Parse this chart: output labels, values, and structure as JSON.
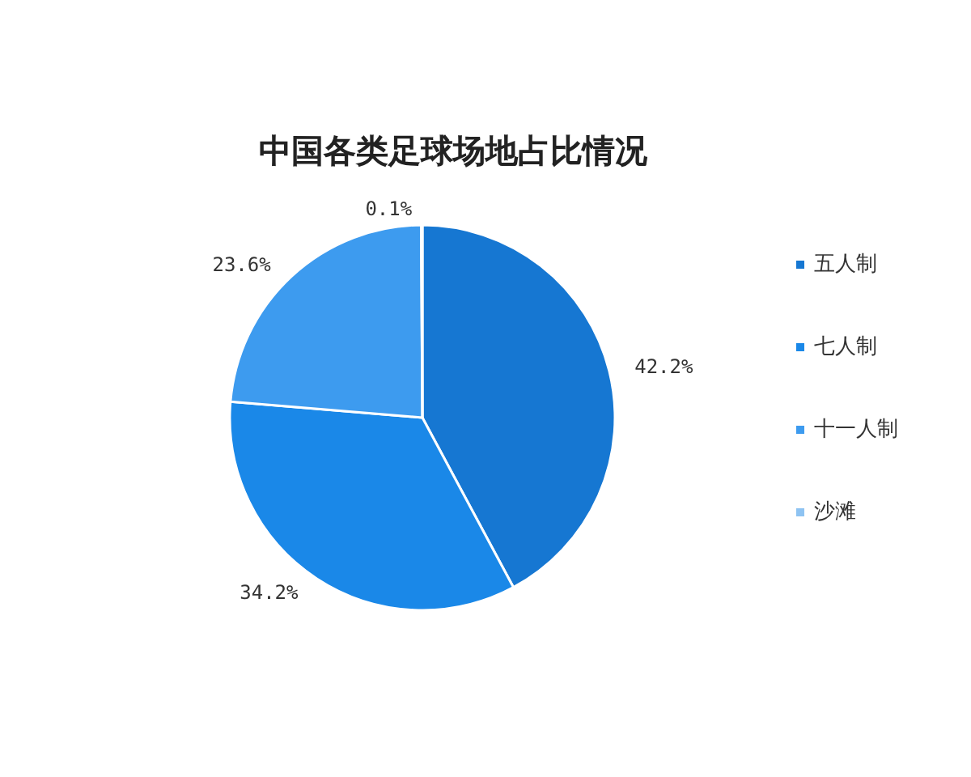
{
  "chart_data": {
    "type": "pie",
    "title": "中国各类足球场地占比情况",
    "categories": [
      "五人制",
      "七人制",
      "十一人制",
      "沙滩"
    ],
    "values": [
      42.2,
      34.2,
      23.6,
      0.1
    ],
    "value_labels": [
      "42.2%",
      "34.2%",
      "23.6%",
      "0.1%"
    ],
    "colors": [
      "#1677d2",
      "#1a88e8",
      "#3d9bef",
      "#8ec3f2"
    ],
    "legend": "right"
  }
}
